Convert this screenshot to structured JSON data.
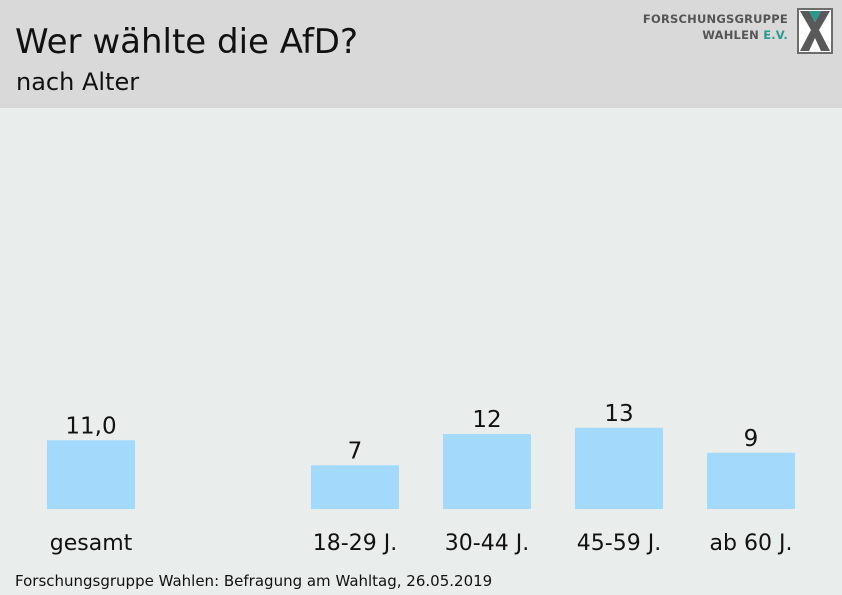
{
  "header": {
    "title": "Wer wählte die AfD?",
    "subtitle": "nach Alter"
  },
  "logo": {
    "line1": "FORSCHUNGSGRUPPE",
    "line2_main": "WAHLEN",
    "line2_accent": "E.V.",
    "icon": "fgw-x-logo-icon"
  },
  "chart_data": {
    "type": "bar",
    "categories": [
      "gesamt",
      "18-29 J.",
      "30-44 J.",
      "45-59 J.",
      "ab 60 J."
    ],
    "values": [
      11.0,
      7,
      12,
      13,
      9
    ],
    "value_labels": [
      "11,0",
      "7",
      "12",
      "13",
      "9"
    ],
    "bar_color": "#a3dafb",
    "title": "Wer wählte die AfD?",
    "subtitle": "nach Alter",
    "grid": false
  },
  "footer": {
    "source": "Forschungsgruppe Wahlen: Befragung am Wahltag, 26.05.2019"
  }
}
